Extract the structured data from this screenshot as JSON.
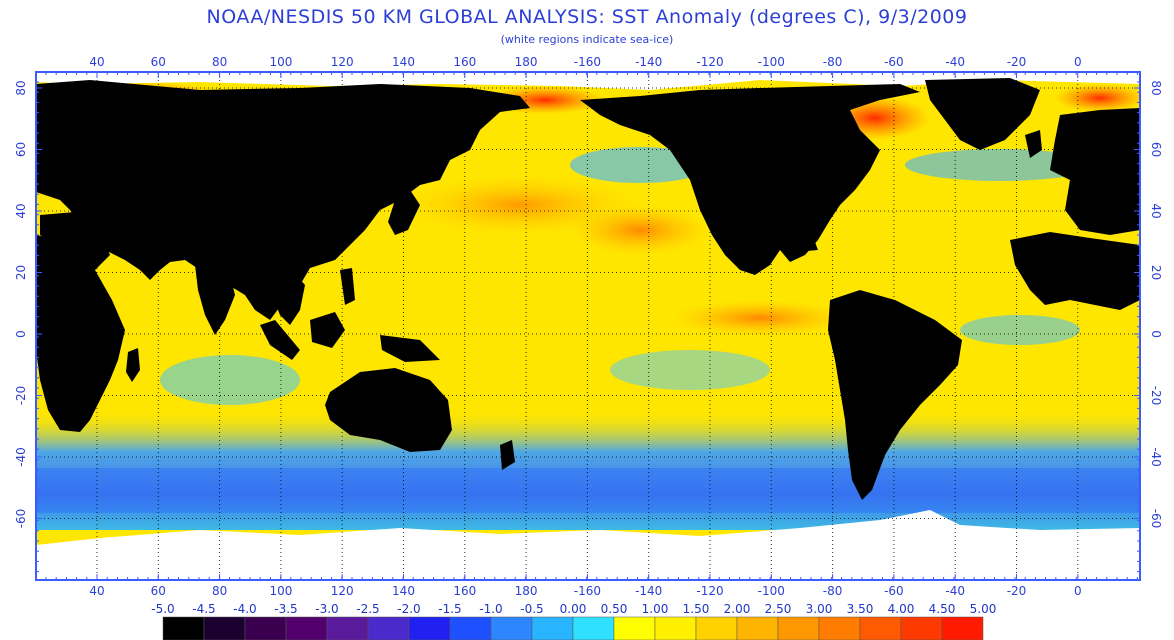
{
  "header": {
    "title": "NOAA/NESDIS 50 KM GLOBAL ANALYSIS: SST Anomaly (degrees C), 9/3/2009",
    "subtitle": "(white regions indicate sea-ice)"
  },
  "axes": {
    "lon_labels": [
      "40",
      "60",
      "80",
      "100",
      "120",
      "140",
      "160",
      "180",
      "-160",
      "-140",
      "-120",
      "-100",
      "-80",
      "-60",
      "-40",
      "-20",
      "0"
    ],
    "lat_labels": [
      "80",
      "60",
      "40",
      "20",
      "0",
      "-20",
      "-40",
      "-60"
    ]
  },
  "colorbar": {
    "labels": [
      "-5.0",
      "-4.5",
      "-4.0",
      "-3.5",
      "-3.0",
      "-2.5",
      "-2.0",
      "-1.5",
      "-1.0",
      "-0.5",
      "0.00",
      "0.50",
      "1.00",
      "1.50",
      "2.00",
      "2.50",
      "3.00",
      "3.50",
      "4.00",
      "4.50",
      "5.00"
    ],
    "colors": [
      "#000000",
      "#1c0030",
      "#3a004f",
      "#52006e",
      "#5a1a9c",
      "#4b2acb",
      "#2020f0",
      "#1e50ff",
      "#2e86ff",
      "#28b4ff",
      "#30e0ff",
      "#ffff00",
      "#fff000",
      "#ffd200",
      "#ffb400",
      "#ff9800",
      "#ff7c00",
      "#ff5a00",
      "#ff3a00",
      "#ff1a00"
    ]
  },
  "map": {
    "land_color": "#000000",
    "ice_color": "#ffffff",
    "grid_color": "#000000",
    "border_color": "#3b5bff"
  }
}
